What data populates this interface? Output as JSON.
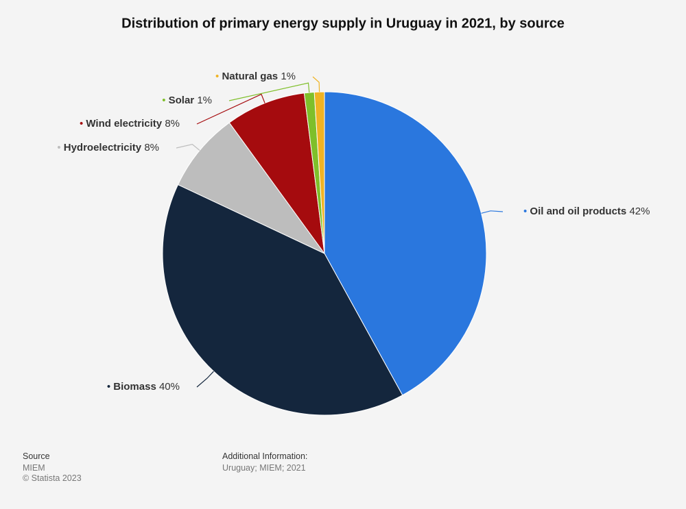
{
  "chart_data": {
    "type": "pie",
    "title": "Distribution of primary energy supply in Uruguay in 2021, by source",
    "categories": [
      "Oil and oil products",
      "Biomass",
      "Hydroelectricity",
      "Wind electricity",
      "Solar",
      "Natural gas"
    ],
    "values": [
      42,
      40,
      8,
      8,
      1,
      1
    ],
    "value_labels": [
      "42%",
      "40%",
      "8%",
      "8%",
      "1%",
      "1%"
    ],
    "colors": [
      "#2a77de",
      "#14263d",
      "#bdbdbd",
      "#a50b0e",
      "#7fbf2a",
      "#f0b323"
    ]
  },
  "footer": {
    "source_label": "Source",
    "source": "MIEM",
    "copyright": "© Statista 2023",
    "info_label": "Additional Information:",
    "info": "Uruguay; MIEM; 2021"
  }
}
